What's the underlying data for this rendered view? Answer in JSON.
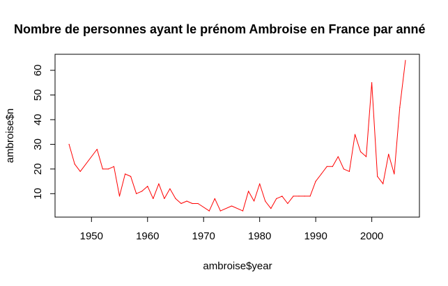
{
  "chart_data": {
    "type": "line",
    "title": "Nombre de personnes ayant le prénom Ambroise en France par anné",
    "xlabel": "ambroise$year",
    "ylabel": "ambroise$n",
    "xlim": [
      1943.5,
      2008.5
    ],
    "ylim": [
      0.5,
      66.5
    ],
    "x_ticks": [
      1950,
      1960,
      1970,
      1980,
      1990,
      2000
    ],
    "y_ticks": [
      10,
      20,
      30,
      40,
      50,
      60
    ],
    "grid": false,
    "legend": "none",
    "line_color": "#ff0000",
    "series": [
      {
        "x": [
          1946,
          1947,
          1948,
          1951,
          1952,
          1953,
          1954,
          1955,
          1956,
          1957,
          1958,
          1959,
          1960,
          1961,
          1962,
          1963,
          1964,
          1965,
          1966,
          1967,
          1968,
          1969,
          1971,
          1972,
          1973,
          1975,
          1977,
          1978,
          1979,
          1980,
          1981,
          1982,
          1983,
          1984,
          1985,
          1986,
          1987,
          1988,
          1989,
          1990,
          1991,
          1992,
          1993,
          1994,
          1995,
          1996,
          1997,
          1998,
          1999,
          2000,
          2001,
          2002,
          2003,
          2004,
          2005,
          2006
        ],
        "y": [
          30,
          22,
          19,
          28,
          20,
          20,
          21,
          9,
          18,
          17,
          10,
          11,
          13,
          8,
          14,
          8,
          12,
          8,
          6,
          7,
          6,
          6,
          3,
          8,
          3,
          5,
          3,
          11,
          7,
          14,
          7,
          4,
          8,
          9,
          6,
          9,
          9,
          9,
          9,
          15,
          18,
          21,
          21,
          25,
          20,
          19,
          34,
          27,
          25,
          55,
          17,
          14,
          26,
          18,
          45,
          64
        ]
      }
    ]
  }
}
